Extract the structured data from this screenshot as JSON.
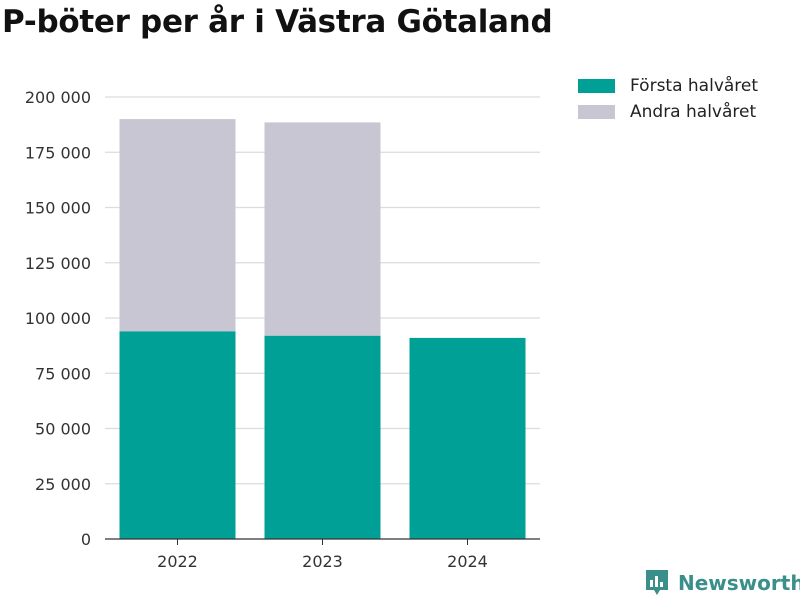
{
  "title": "P-böter per år i Västra Götaland",
  "legend": [
    {
      "label": "Första halvåret",
      "color": "#00a096"
    },
    {
      "label": "Andra halvåret",
      "color": "#c8c6d2"
    }
  ],
  "brand": {
    "name": "Newsworthy",
    "icon": "newsworthy-logo-icon",
    "color": "#3a8f8a"
  },
  "chart_data": {
    "type": "bar",
    "stacked": true,
    "categories": [
      "2022",
      "2023",
      "2024"
    ],
    "series": [
      {
        "name": "Första halvåret",
        "color": "#00a096",
        "values": [
          94000,
          92000,
          91000
        ]
      },
      {
        "name": "Andra halvåret",
        "color": "#c8c6d2",
        "values": [
          96000,
          96500,
          0
        ]
      }
    ],
    "y_ticks": [
      "0",
      "25 000",
      "50 000",
      "75 000",
      "100 000",
      "125 000",
      "150 000",
      "175 000",
      "200 000"
    ],
    "ylim": [
      0,
      200000
    ],
    "grid": true,
    "legend_position": "top-right"
  }
}
